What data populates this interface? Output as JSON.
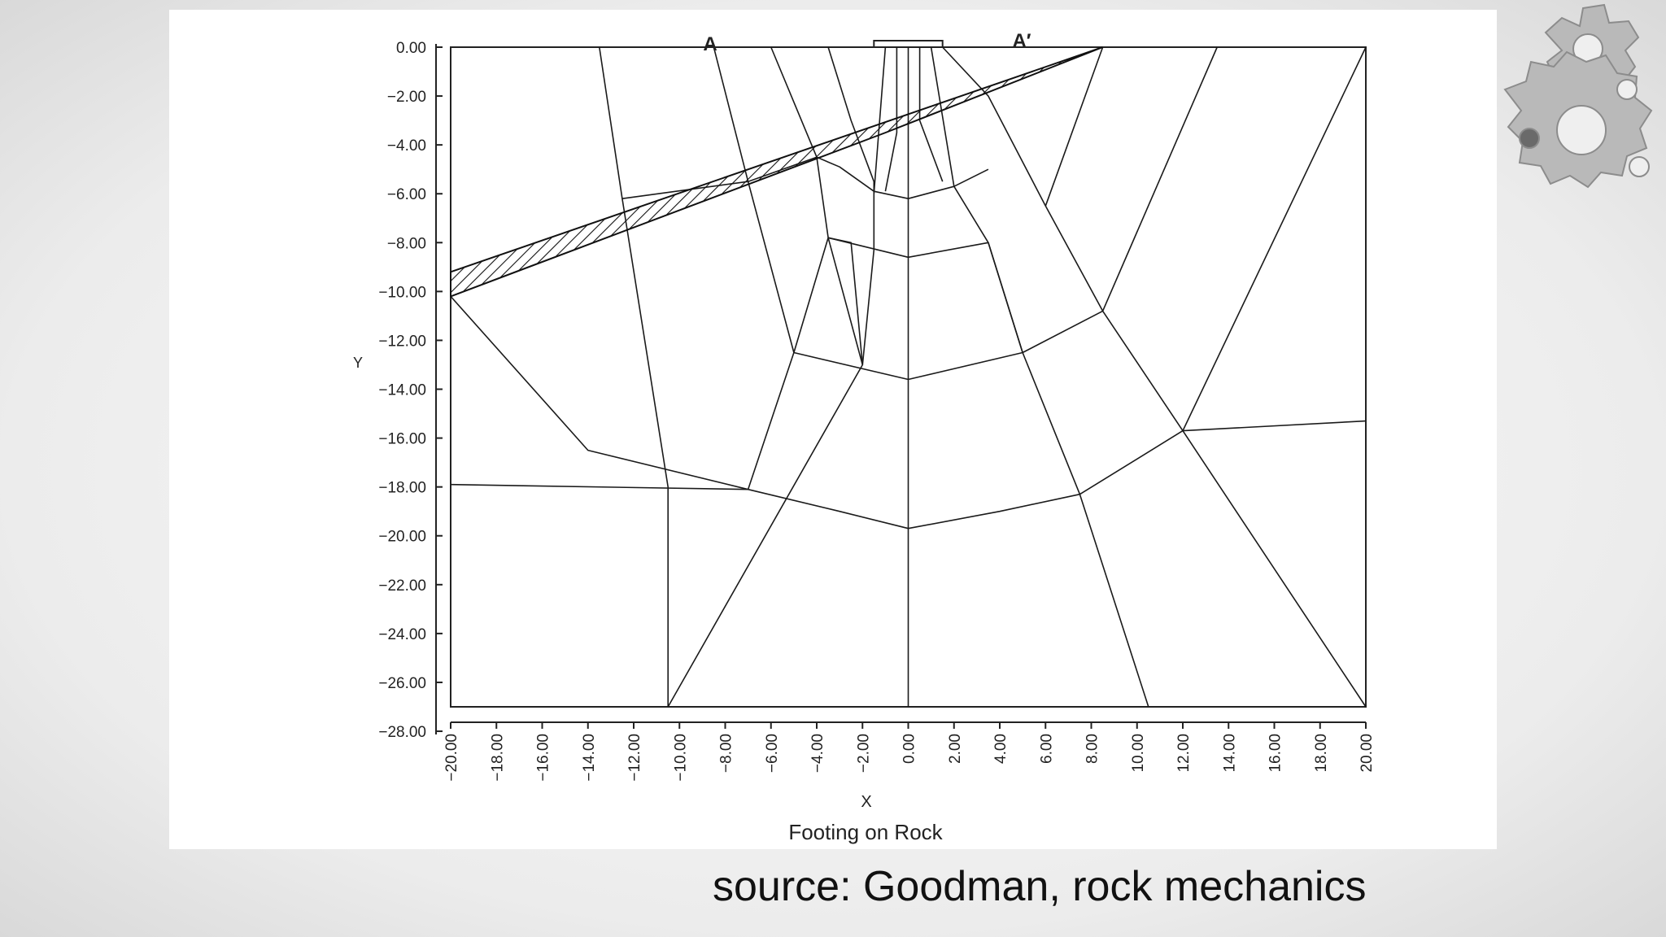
{
  "figure": {
    "section_labels": {
      "left": "A",
      "right": "A′"
    },
    "x_axis_label": "X",
    "y_axis_label": "Y",
    "title": "Footing on Rock",
    "y_ticks": [
      "0.00",
      "−2.00",
      "−4.00",
      "−6.00",
      "−8.00",
      "−10.00",
      "−12.00",
      "−14.00",
      "−16.00",
      "−18.00",
      "−20.00",
      "−22.00",
      "−24.00",
      "−26.00",
      "−28.00"
    ],
    "x_ticks": [
      "−20.00",
      "−18.00",
      "−16.00",
      "−14.00",
      "−12.00",
      "−10.00",
      "−8.00",
      "−6.00",
      "−4.00",
      "−2.00",
      "0.00",
      "2.00",
      "4.00",
      "6.00",
      "8.00",
      "10.00",
      "12.00",
      "14.00",
      "16.00",
      "18.00",
      "20.00"
    ],
    "mesh_bounds": {
      "x": [
        -20,
        20
      ],
      "y": [
        -27,
        0
      ]
    },
    "footing": {
      "x": [
        -1.5,
        1.5
      ]
    },
    "hatched_layer": {
      "upper": [
        [
          -20,
          -9.2
        ],
        [
          8.5,
          0
        ]
      ],
      "lower": [
        [
          -20,
          -10.2
        ],
        [
          8.5,
          0
        ]
      ]
    },
    "mesh_lines": [
      [
        [
          -13.5,
          0
        ],
        [
          -12.5,
          -6.2
        ],
        [
          -10.5,
          -18
        ],
        [
          -10.5,
          -27
        ]
      ],
      [
        [
          -8.5,
          0
        ],
        [
          -7,
          -5.5
        ],
        [
          -5,
          -12.5
        ],
        [
          -7,
          -18.1
        ]
      ],
      [
        [
          -6,
          0
        ],
        [
          -4,
          -4.5
        ],
        [
          -3.5,
          -7.8
        ],
        [
          -2.5,
          -8
        ],
        [
          -2,
          -13
        ],
        [
          -10.5,
          -27
        ]
      ],
      [
        [
          -3.5,
          0
        ],
        [
          -2.5,
          -3
        ],
        [
          -1.5,
          -5.5
        ],
        [
          -1.5,
          -6
        ],
        [
          -1.5,
          -8.3
        ],
        [
          -2,
          -13
        ]
      ],
      [
        [
          -1,
          0
        ],
        [
          -1.5,
          -6
        ]
      ],
      [
        [
          -0.5,
          0
        ],
        [
          -0.5,
          -2.5
        ],
        [
          -0.5,
          -3.5
        ],
        [
          -1,
          -5.9
        ]
      ],
      [
        [
          0,
          0
        ],
        [
          0,
          -27
        ]
      ],
      [
        [
          0.5,
          0
        ],
        [
          0.5,
          -3
        ],
        [
          1.5,
          -5.5
        ]
      ],
      [
        [
          1,
          0
        ],
        [
          2,
          -5.7
        ],
        [
          3.5,
          -8
        ],
        [
          5,
          -12.5
        ],
        [
          7.5,
          -18.3
        ],
        [
          10.5,
          -27
        ]
      ],
      [
        [
          1.5,
          0
        ],
        [
          3.5,
          -2
        ],
        [
          6,
          -6.5
        ],
        [
          8.5,
          -10.8
        ],
        [
          12,
          -15.7
        ],
        [
          20,
          -27
        ]
      ],
      [
        [
          8.5,
          0
        ],
        [
          6,
          -6.5
        ]
      ],
      [
        [
          13.5,
          0
        ],
        [
          8.5,
          -10.8
        ]
      ],
      [
        [
          20,
          0
        ],
        [
          12,
          -15.7
        ]
      ],
      [
        [
          -20,
          -10.2
        ],
        [
          -14,
          -16.5
        ],
        [
          -7,
          -18.1
        ]
      ],
      [
        [
          -20,
          -17.9
        ],
        [
          -7,
          -18.1
        ],
        [
          -3,
          -19
        ],
        [
          0,
          -19.7
        ],
        [
          4,
          -19
        ],
        [
          7.5,
          -18.3
        ],
        [
          12,
          -15.7
        ],
        [
          20,
          -15.3
        ]
      ],
      [
        [
          -12.5,
          -6.2
        ],
        [
          -7,
          -5.5
        ],
        [
          -4,
          -4.5
        ]
      ],
      [
        [
          -5,
          -12.5
        ],
        [
          -3.5,
          -7.8
        ],
        [
          -2,
          -13
        ]
      ],
      [
        [
          -3.5,
          -7.8
        ],
        [
          0,
          -8.6
        ],
        [
          3.5,
          -8
        ],
        [
          5,
          -12.5
        ]
      ],
      [
        [
          -1.5,
          -5.9
        ],
        [
          0,
          -6.2
        ],
        [
          2,
          -5.7
        ],
        [
          3.5,
          -5
        ]
      ],
      [
        [
          -5,
          -12.5
        ],
        [
          0,
          -13.6
        ],
        [
          5,
          -12.5
        ],
        [
          8.5,
          -10.8
        ]
      ],
      [
        [
          -4,
          -4.5
        ],
        [
          -3,
          -4.9
        ],
        [
          -1.5,
          -5.9
        ]
      ]
    ]
  },
  "caption": "source: Goodman, rock mechanics"
}
